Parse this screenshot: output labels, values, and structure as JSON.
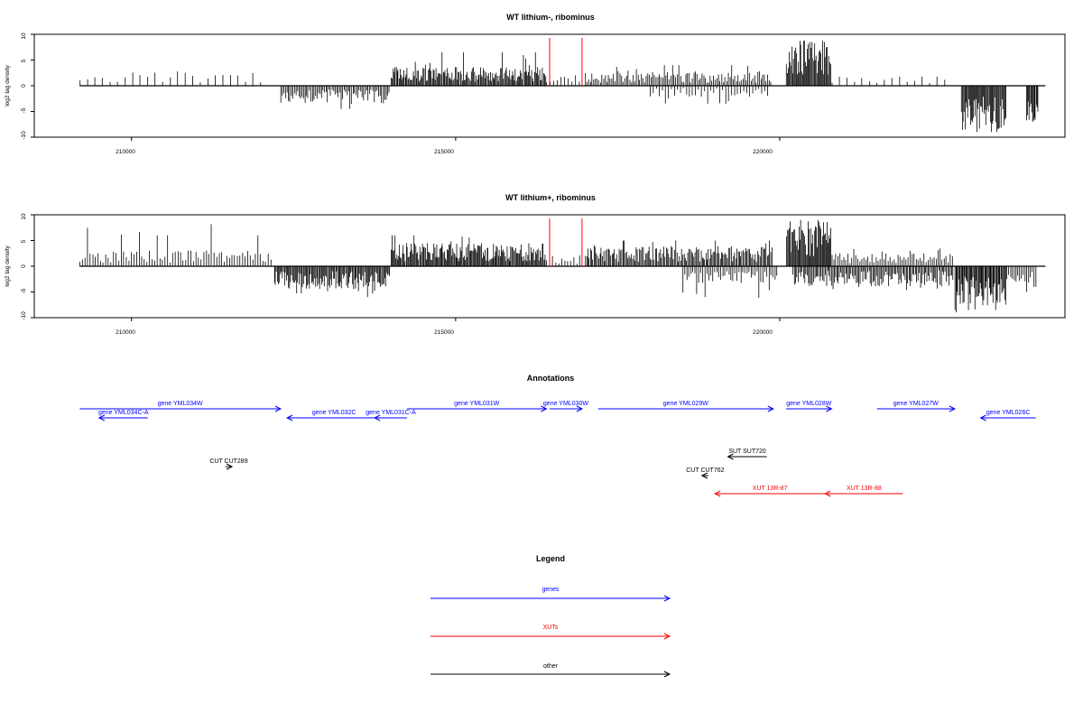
{
  "chart_data": [
    {
      "type": "bar",
      "title": "WT lithium-, ribominus",
      "ylabel": "log2 tag density",
      "xlim": [
        208500,
        224400
      ],
      "ylim": [
        -10,
        10
      ],
      "x_ticks": [
        "210000",
        "215000",
        "220000"
      ],
      "y_ticks": [
        "10",
        "5",
        "0",
        "-5",
        "-10"
      ],
      "markers": [
        216450,
        216950
      ],
      "baseline": [
        209200,
        224100
      ],
      "segments": [
        {
          "x": [
            209200,
            212200
          ],
          "sign": 1,
          "density": 0.12,
          "amp": 2.0,
          "peaks": [
            3,
            3.5
          ]
        },
        {
          "x": [
            212300,
            214000
          ],
          "sign": -1,
          "density": 0.6,
          "amp": 2.5,
          "peaks": [
            4.5,
            4.5
          ]
        },
        {
          "x": [
            214000,
            216400
          ],
          "sign": 1,
          "density": 0.9,
          "amp": 2.6,
          "peaks": [
            6,
            6.5
          ]
        },
        {
          "x": [
            216400,
            217000
          ],
          "sign": 1,
          "density": 0.25,
          "amp": 1.5,
          "peaks": [
            2,
            2
          ]
        },
        {
          "x": [
            217000,
            219900
          ],
          "sign": 1,
          "density": 0.55,
          "amp": 2.0,
          "peaks": [
            4,
            4
          ]
        },
        {
          "x": [
            218000,
            219900
          ],
          "sign": -1,
          "density": 0.3,
          "amp": 1.6,
          "peaks": [
            3.5,
            3.5
          ]
        },
        {
          "x": [
            220100,
            220800
          ],
          "sign": 1,
          "density": 1.0,
          "amp": 6.5,
          "peaks": [
            9,
            8.5
          ]
        },
        {
          "x": [
            220800,
            222700
          ],
          "sign": 1,
          "density": 0.12,
          "amp": 1.3,
          "peaks": [
            2,
            2
          ]
        },
        {
          "x": [
            222800,
            223500
          ],
          "sign": -1,
          "density": 1.0,
          "amp": 6.5,
          "peaks": [
            9.5,
            9
          ]
        },
        {
          "x": [
            223800,
            224000
          ],
          "sign": -1,
          "density": 1.0,
          "amp": 5.5,
          "peaks": [
            8,
            7
          ]
        }
      ]
    },
    {
      "type": "bar",
      "title": "WT lithium+, ribominus",
      "ylabel": "log2 tag density",
      "xlim": [
        208500,
        224400
      ],
      "ylim": [
        -10,
        10
      ],
      "x_ticks": [
        "210000",
        "215000",
        "220000"
      ],
      "y_ticks": [
        "10",
        "5",
        "0",
        "-5",
        "-10"
      ],
      "markers": [
        216450,
        216950
      ],
      "baseline": [
        209200,
        224100
      ],
      "segments": [
        {
          "x": [
            209200,
            212200
          ],
          "sign": 1,
          "density": 0.35,
          "amp": 2.2,
          "peaks": [
            9,
            6
          ]
        },
        {
          "x": [
            212200,
            214000
          ],
          "sign": -1,
          "density": 0.9,
          "amp": 3.2,
          "peaks": [
            5.5,
            6
          ]
        },
        {
          "x": [
            214000,
            216400
          ],
          "sign": 1,
          "density": 0.95,
          "amp": 3.2,
          "peaks": [
            6,
            6
          ]
        },
        {
          "x": [
            216400,
            217000
          ],
          "sign": 1,
          "density": 0.3,
          "amp": 1.6,
          "peaks": [
            3,
            2
          ]
        },
        {
          "x": [
            217000,
            219900
          ],
          "sign": 1,
          "density": 0.75,
          "amp": 2.8,
          "peaks": [
            5,
            5
          ]
        },
        {
          "x": [
            218500,
            220000
          ],
          "sign": -1,
          "density": 0.45,
          "amp": 2.4,
          "peaks": [
            6.5,
            5
          ]
        },
        {
          "x": [
            220100,
            220800
          ],
          "sign": 1,
          "density": 1.0,
          "amp": 6.5,
          "peaks": [
            9.5,
            9
          ]
        },
        {
          "x": [
            220200,
            222700
          ],
          "sign": -1,
          "density": 0.7,
          "amp": 2.8,
          "peaks": [
            5,
            5
          ]
        },
        {
          "x": [
            220800,
            222700
          ],
          "sign": 1,
          "density": 0.45,
          "amp": 1.8,
          "peaks": [
            3.5,
            3
          ]
        },
        {
          "x": [
            222700,
            223500
          ],
          "sign": -1,
          "density": 1.0,
          "amp": 5.5,
          "peaks": [
            9,
            8.5
          ]
        },
        {
          "x": [
            223500,
            224000
          ],
          "sign": -1,
          "density": 0.5,
          "amp": 2.5,
          "peaks": [
            8,
            4
          ]
        }
      ]
    }
  ],
  "annotations": {
    "title": "Annotations",
    "colors": {
      "gene": "#0000ff",
      "xut": "#ff0000",
      "other": "#000000"
    },
    "xlim": [
      208500,
      224400
    ],
    "features": [
      {
        "label": "gene YML034W",
        "class": "gene",
        "start": 209200,
        "end": 212300,
        "strand": "+",
        "row": 0
      },
      {
        "label": "gene YML034C-A",
        "class": "gene",
        "start": 209500,
        "end": 210250,
        "strand": "-",
        "row": 1
      },
      {
        "label": "gene YML032C",
        "class": "gene",
        "start": 212400,
        "end": 213850,
        "strand": "-",
        "row": 1
      },
      {
        "label": "gene YML031C-A",
        "class": "gene",
        "start": 213750,
        "end": 214250,
        "strand": "-",
        "row": 1
      },
      {
        "label": "gene YML031W",
        "class": "gene",
        "start": 214250,
        "end": 216400,
        "strand": "+",
        "row": 0
      },
      {
        "label": "gene YML030W",
        "class": "gene",
        "start": 216450,
        "end": 216950,
        "strand": "+",
        "row": 0
      },
      {
        "label": "gene YML029W",
        "class": "gene",
        "start": 217200,
        "end": 219900,
        "strand": "+",
        "row": 0
      },
      {
        "label": "gene YML028W",
        "class": "gene",
        "start": 220100,
        "end": 220800,
        "strand": "+",
        "row": 0
      },
      {
        "label": "gene YML027W",
        "class": "gene",
        "start": 221500,
        "end": 222700,
        "strand": "+",
        "row": 0
      },
      {
        "label": "gene YML026C",
        "class": "gene",
        "start": 223100,
        "end": 223950,
        "strand": "-",
        "row": 1
      },
      {
        "label": "CUT CUT289",
        "class": "other",
        "start": 211450,
        "end": 211550,
        "strand": "+",
        "row": 3
      },
      {
        "label": "SUT SUT720",
        "class": "other",
        "start": 219200,
        "end": 219800,
        "strand": "-",
        "row": 2
      },
      {
        "label": "CUT CUT762",
        "class": "other",
        "start": 218800,
        "end": 218900,
        "strand": "-",
        "row": 4
      },
      {
        "label": "XUT 13R-87",
        "class": "xut",
        "start": 219000,
        "end": 220700,
        "strand": "-",
        "row": 5
      },
      {
        "label": "XUT 13R-88",
        "class": "xut",
        "start": 220700,
        "end": 221900,
        "strand": "-",
        "row": 5
      }
    ]
  },
  "legend": {
    "title": "Legend",
    "items": [
      {
        "label": "genes",
        "color": "#0000ff"
      },
      {
        "label": "XUTs",
        "color": "#ff0000"
      },
      {
        "label": "other",
        "color": "#000000"
      }
    ]
  }
}
